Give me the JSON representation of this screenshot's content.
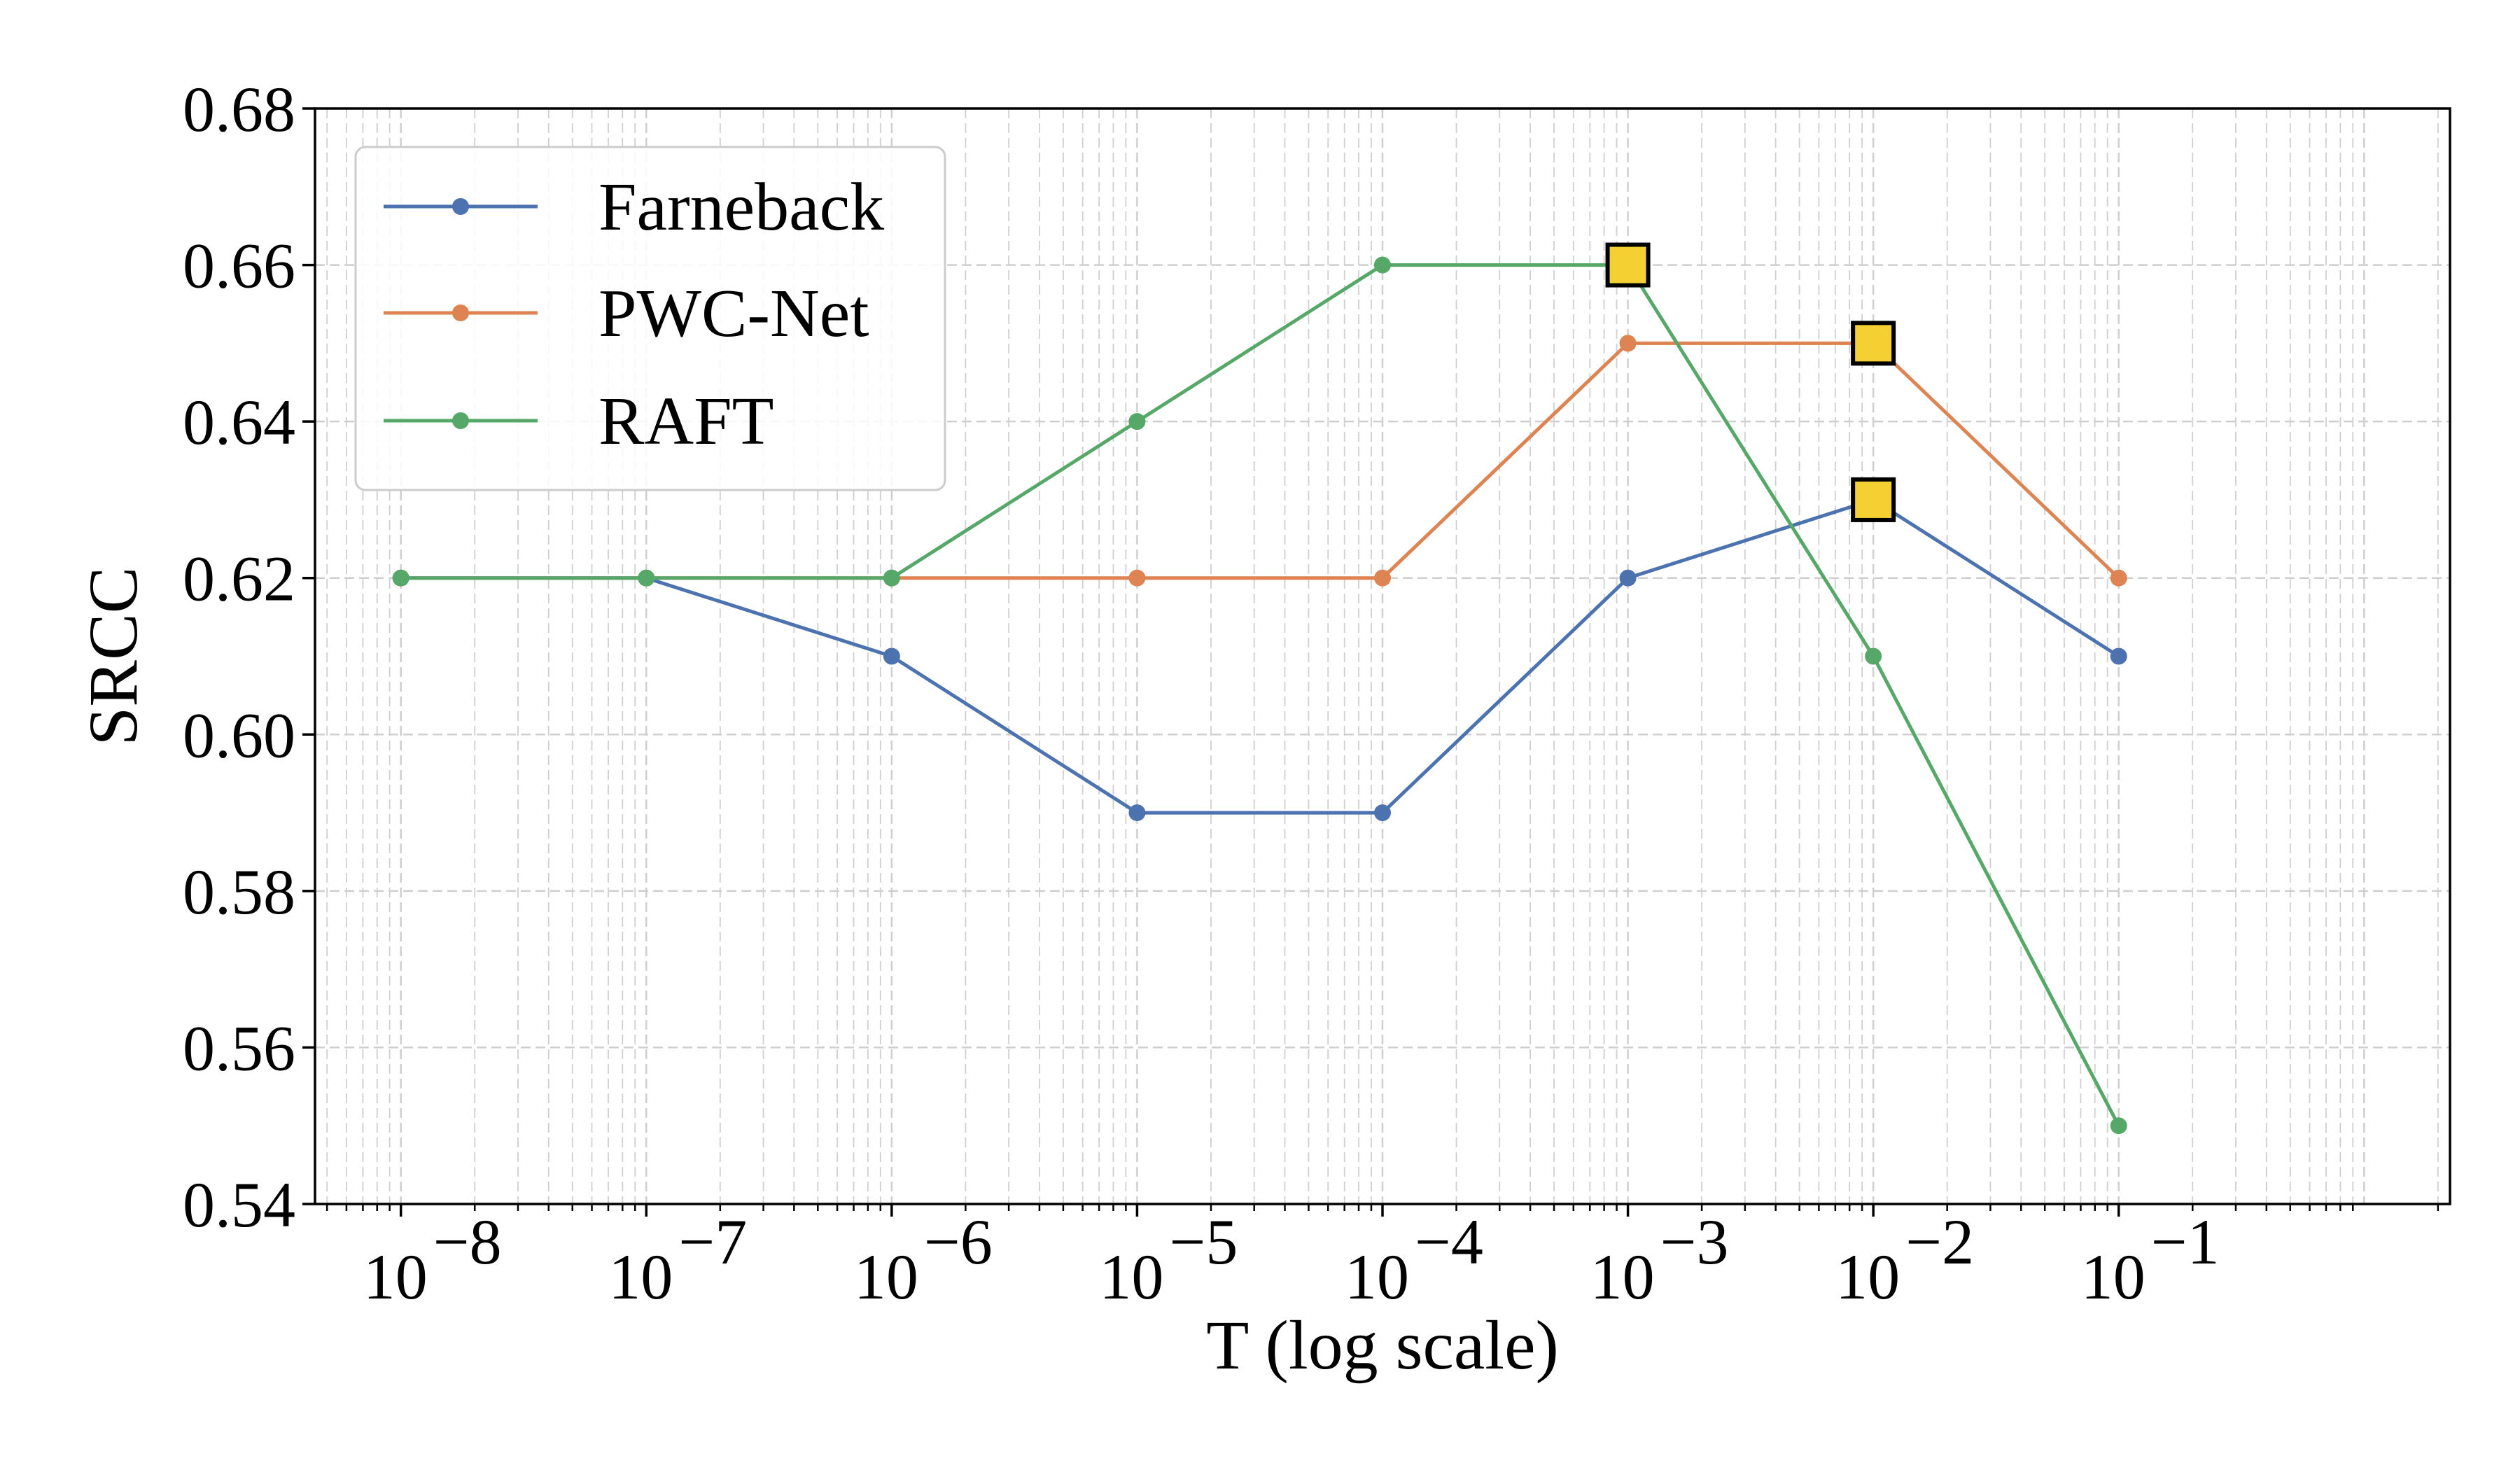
{
  "chart_data": {
    "type": "line",
    "title": "",
    "xlabel": "T (log scale)",
    "ylabel": "SRCC",
    "xscale": "log",
    "x": [
      1e-08,
      1e-07,
      1e-06,
      1e-05,
      0.0001,
      0.001,
      0.01,
      0.1
    ],
    "x_tick_labels": [
      {
        "base": "10",
        "exp": "−8"
      },
      {
        "base": "10",
        "exp": "−7"
      },
      {
        "base": "10",
        "exp": "−6"
      },
      {
        "base": "10",
        "exp": "−5"
      },
      {
        "base": "10",
        "exp": "−4"
      },
      {
        "base": "10",
        "exp": "−3"
      },
      {
        "base": "10",
        "exp": "−2"
      },
      {
        "base": "10",
        "exp": "−1"
      }
    ],
    "y_ticks": [
      "0.54",
      "0.56",
      "0.58",
      "0.60",
      "0.62",
      "0.64",
      "0.66",
      "0.68"
    ],
    "ylim": [
      0.54,
      0.68
    ],
    "xlim_log10": [
      -8.35,
      0.35
    ],
    "grid": true,
    "legend_position": "top-left",
    "series": [
      {
        "name": "Farneback",
        "color": "#4C72B0",
        "values": [
          0.62,
          0.62,
          0.61,
          0.59,
          0.59,
          0.62,
          0.63,
          0.61
        ],
        "best_index": 6
      },
      {
        "name": "PWC-Net",
        "color": "#DD8452",
        "values": [
          0.62,
          0.62,
          0.62,
          0.62,
          0.62,
          0.65,
          0.65,
          0.62
        ],
        "best_index": 6
      },
      {
        "name": "RAFT",
        "color": "#55A868",
        "values": [
          0.62,
          0.62,
          0.62,
          0.64,
          0.66,
          0.66,
          0.61,
          0.55
        ],
        "best_index": 5
      }
    ],
    "highlight_color": "#F5D033"
  }
}
